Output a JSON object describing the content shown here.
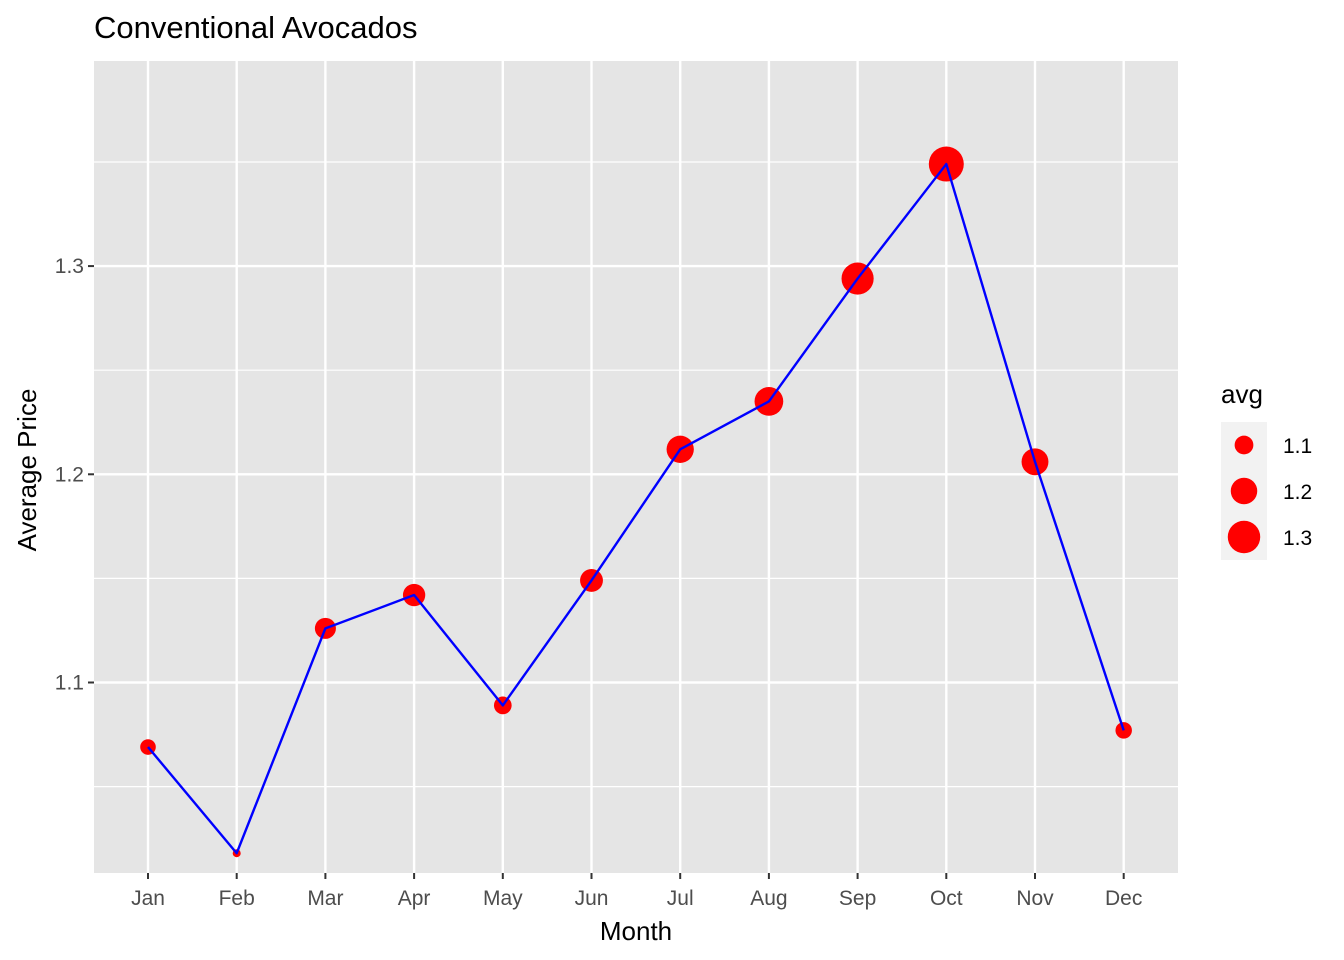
{
  "chart_data": {
    "type": "line",
    "title": "Conventional Avocados",
    "xlabel": "Month",
    "ylabel": "Average Price",
    "categories": [
      "Jan",
      "Feb",
      "Mar",
      "Apr",
      "May",
      "Jun",
      "Jul",
      "Aug",
      "Sep",
      "Oct",
      "Nov",
      "Dec"
    ],
    "values": [
      1.069,
      1.018,
      1.126,
      1.142,
      1.089,
      1.149,
      1.212,
      1.235,
      1.294,
      1.349,
      1.206,
      1.077
    ],
    "ylim": [
      1.0085,
      1.3985
    ],
    "yticks": [
      1.1,
      1.2,
      1.3
    ],
    "ytick_labels": [
      "1.1",
      "1.2",
      "1.3"
    ],
    "grid": true,
    "line_color": "#0000FF",
    "point_color": "#FF0000",
    "panel_background": "#E5E5E5",
    "point_size_encodes": "avg",
    "legend": {
      "title": "avg",
      "position": "right",
      "entries": [
        {
          "label": "1.1",
          "value": 1.1
        },
        {
          "label": "1.2",
          "value": 1.2
        },
        {
          "label": "1.3",
          "value": 1.3
        }
      ]
    }
  }
}
